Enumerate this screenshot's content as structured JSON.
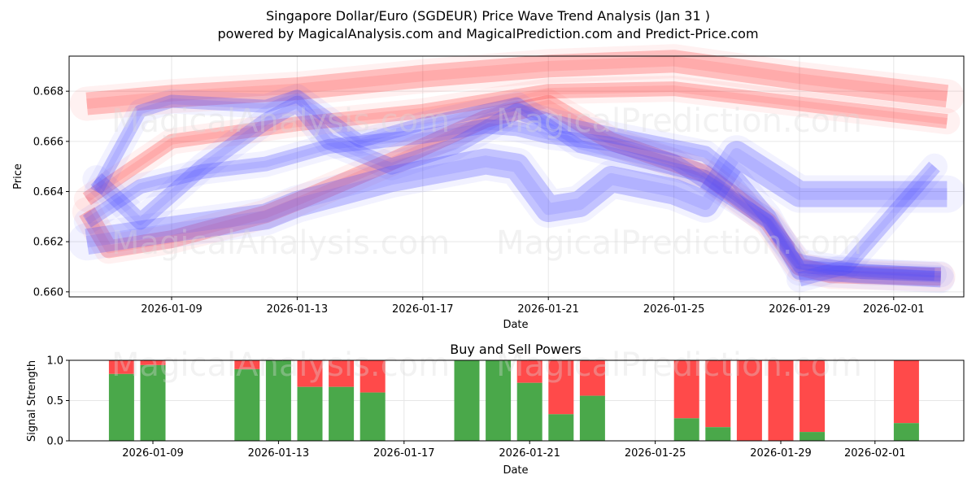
{
  "title_line1": "Singapore Dollar/Euro (SGDEUR) Price Wave Trend Analysis (Jan 31 )",
  "title_line2": "powered by MagicalAnalysis.com and MagicalPrediction.com and Predict-Price.com",
  "watermarks": [
    "MagicalAnalysis.com",
    "MagicalPrediction.com"
  ],
  "colors": {
    "red": "#ff3b3b",
    "blue": "#4d4dff",
    "buy": "#4aa84a",
    "sell": "#ff4a4a"
  },
  "chart_data": [
    {
      "type": "line",
      "title": "",
      "xlabel": "Date",
      "ylabel": "Price",
      "ylim": [
        0.6598,
        0.6694
      ],
      "grid": true,
      "x_tick_labels": [
        "2026-01-09",
        "2026-01-13",
        "2026-01-17",
        "2026-01-21",
        "2026-01-25",
        "2026-01-29",
        "2026-02-01"
      ],
      "y_tick_labels": [
        "0.660",
        "0.662",
        "0.664",
        "0.666",
        "0.668"
      ],
      "y_ticks": [
        0.66,
        0.662,
        0.664,
        0.666,
        0.668
      ],
      "series": [
        {
          "name": "red-top-band",
          "color": "red",
          "x": [
            6.3,
            9,
            13,
            17,
            21,
            25,
            29,
            33.7
          ],
          "values": [
            0.6675,
            0.6678,
            0.6681,
            0.6686,
            0.669,
            0.6692,
            0.6685,
            0.6678
          ]
        },
        {
          "name": "red-mid-band",
          "color": "red",
          "x": [
            6.3,
            9,
            13,
            17,
            21,
            25,
            29,
            33.7
          ],
          "values": [
            0.6637,
            0.666,
            0.6667,
            0.6672,
            0.668,
            0.6681,
            0.6675,
            0.6668
          ]
        },
        {
          "name": "red-low-band",
          "color": "red",
          "x": [
            6.3,
            7,
            9,
            12,
            13,
            16,
            19,
            21,
            23,
            26,
            28,
            29,
            30,
            33.5
          ],
          "values": [
            0.6632,
            0.6617,
            0.6621,
            0.6631,
            0.6636,
            0.6652,
            0.6669,
            0.6675,
            0.666,
            0.6647,
            0.6628,
            0.661,
            0.6607,
            0.6606
          ]
        },
        {
          "name": "blue-low-band",
          "color": "blue",
          "x": [
            6.3,
            9,
            12,
            13,
            16,
            19,
            20,
            21,
            22,
            23,
            25,
            26,
            27,
            29,
            33.7
          ],
          "values": [
            0.662,
            0.6625,
            0.663,
            0.6635,
            0.6645,
            0.6652,
            0.665,
            0.6633,
            0.6635,
            0.6645,
            0.664,
            0.6635,
            0.6655,
            0.6639,
            0.6639
          ]
        },
        {
          "name": "blue-wave-1",
          "color": "blue",
          "x": [
            6.6,
            8,
            9,
            12,
            13,
            15,
            17,
            20,
            22,
            24,
            26,
            28,
            29,
            33.3
          ],
          "values": [
            0.664,
            0.6672,
            0.6676,
            0.6674,
            0.6678,
            0.666,
            0.6667,
            0.6675,
            0.6658,
            0.6652,
            0.6646,
            0.6628,
            0.661,
            0.6607
          ]
        },
        {
          "name": "blue-wave-2",
          "color": "blue",
          "x": [
            6.3,
            8,
            10,
            12,
            14,
            17,
            19,
            20,
            21,
            23,
            25,
            26,
            28,
            29,
            31,
            33.5
          ],
          "values": [
            0.6628,
            0.6642,
            0.6648,
            0.6651,
            0.6658,
            0.6662,
            0.6666,
            0.6665,
            0.6662,
            0.6659,
            0.6652,
            0.6644,
            0.6628,
            0.6612,
            0.6608,
            0.6607
          ]
        },
        {
          "name": "blue-wave-3",
          "color": "blue",
          "x": [
            6.6,
            8,
            10,
            12,
            13,
            14,
            16,
            18,
            20,
            21,
            22,
            24,
            26,
            27,
            28,
            29,
            33.5
          ],
          "values": [
            0.6645,
            0.6628,
            0.665,
            0.6668,
            0.6675,
            0.666,
            0.665,
            0.6658,
            0.6672,
            0.6668,
            0.6665,
            0.666,
            0.6655,
            0.6645,
            0.663,
            0.6608,
            0.6605
          ]
        },
        {
          "name": "blue-rebound",
          "color": "blue",
          "x": [
            29,
            30.5,
            33.3
          ],
          "values": [
            0.6605,
            0.661,
            0.665
          ]
        }
      ]
    },
    {
      "type": "bar",
      "title": "Buy and Sell Powers",
      "xlabel": "Date",
      "ylabel": "Signal Strength",
      "ylim": [
        0,
        1
      ],
      "grid": true,
      "x_tick_labels": [
        "2026-01-09",
        "2026-01-13",
        "2026-01-17",
        "2026-01-21",
        "2026-01-25",
        "2026-01-29",
        "2026-02-01"
      ],
      "y_tick_labels": [
        "0.0",
        "0.5",
        "1.0"
      ],
      "y_ticks": [
        0,
        0.5,
        1
      ],
      "bars": [
        {
          "x": 8,
          "buy": 0.83
        },
        {
          "x": 9,
          "buy": 0.94
        },
        {
          "x": 12,
          "buy": 0.89
        },
        {
          "x": 13,
          "buy": 1.0
        },
        {
          "x": 14,
          "buy": 0.67
        },
        {
          "x": 15,
          "buy": 0.67
        },
        {
          "x": 16,
          "buy": 0.6
        },
        {
          "x": 19,
          "buy": 1.0
        },
        {
          "x": 20,
          "buy": 1.0
        },
        {
          "x": 21,
          "buy": 0.72
        },
        {
          "x": 22,
          "buy": 0.33
        },
        {
          "x": 23,
          "buy": 0.56
        },
        {
          "x": 26,
          "buy": 0.28
        },
        {
          "x": 27,
          "buy": 0.17
        },
        {
          "x": 28,
          "buy": 0.0
        },
        {
          "x": 29,
          "buy": 0.0
        },
        {
          "x": 30,
          "buy": 0.11
        },
        {
          "x": 33,
          "buy": 0.22
        }
      ]
    }
  ]
}
